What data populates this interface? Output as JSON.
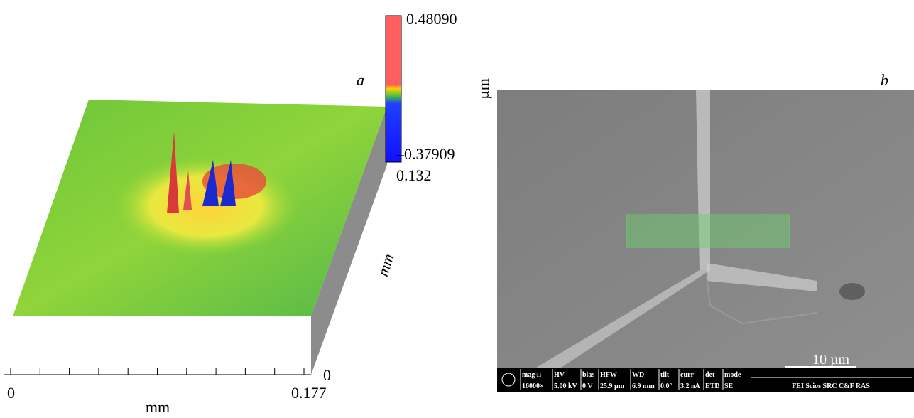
{
  "panel_a": {
    "label": "a",
    "colorbar": {
      "max": "0.48090",
      "min": "–0.37909",
      "unit": "µm"
    },
    "depth_axis": {
      "max": "0.132",
      "min": "0",
      "label": "mm"
    },
    "x_axis": {
      "min": "0",
      "max": "0.177",
      "label": "mm"
    }
  },
  "panel_b": {
    "label": "b",
    "scale_bar": "10 µm",
    "info_bar": {
      "fields": [
        {
          "name": "mag □",
          "value": "16000×"
        },
        {
          "name": "HV",
          "value": "5.00 kV"
        },
        {
          "name": "bias",
          "value": "0 V"
        },
        {
          "name": "HFW",
          "value": "25.9 µm"
        },
        {
          "name": "WD",
          "value": "6.9 mm"
        },
        {
          "name": "tilt",
          "value": "0.0°"
        },
        {
          "name": "curr",
          "value": "3.2 nA"
        },
        {
          "name": "det",
          "value": "ETD"
        },
        {
          "name": "mode",
          "value": "SE"
        }
      ],
      "footer": "FEI Scios SRC C&F RAS"
    }
  }
}
